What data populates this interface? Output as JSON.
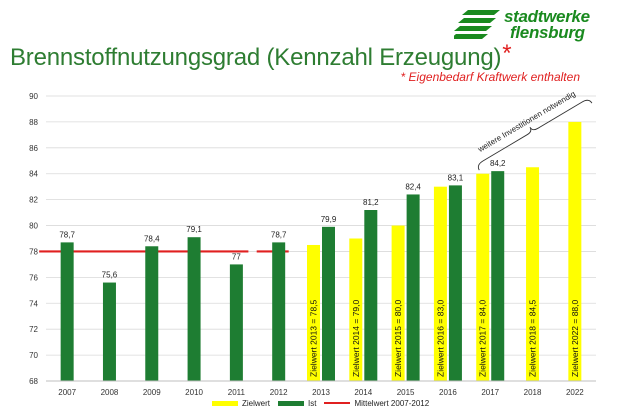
{
  "logo": {
    "line1": "stadtwerke",
    "line2": "flensburg",
    "color": "#1a8a1f"
  },
  "title": {
    "text": "Brennstoffnutzungsgrad (Kennzahl Erzeugung)",
    "star": "*"
  },
  "subtitle": "* Eigenbedarf Kraftwerk enthalten",
  "chart_data": {
    "type": "bar",
    "categories": [
      "2007",
      "2008",
      "2009",
      "2010",
      "2011",
      "2012",
      "2013",
      "2014",
      "2015",
      "2016",
      "2017",
      "2018",
      "2022"
    ],
    "series": [
      {
        "name": "Zielwert",
        "color": "#ffff00",
        "values": [
          null,
          null,
          null,
          null,
          null,
          null,
          78.5,
          79.0,
          80.0,
          83.0,
          84.0,
          84.5,
          88.0
        ],
        "labels": [
          "",
          "",
          "",
          "",
          "",
          "",
          "Zielwert 2013 = 78,5",
          "Zielwert 2014 = 79,0",
          "Zielwert 2015 = 80,0",
          "Zielwert 2016 = 83,0",
          "Zielwert 2017 = 84,0",
          "Zielwert 2018 = 84,5",
          "Zielwert 2022 = 88,0"
        ]
      },
      {
        "name": "Ist",
        "color": "#1e7d32",
        "values": [
          78.7,
          75.6,
          78.4,
          79.1,
          77.0,
          78.7,
          79.9,
          81.2,
          82.4,
          83.1,
          84.2,
          null,
          null
        ],
        "labels": [
          "78,7",
          "75,6",
          "78,4",
          "79,1",
          "77",
          "78,7",
          "79,9",
          "81,2",
          "82,4",
          "83,1",
          "84,2",
          "",
          ""
        ]
      }
    ],
    "reference_line": {
      "name": "Mittelwert 2007-2012",
      "value": 78.0,
      "color": "#e02020"
    },
    "annotation": {
      "text": "weitere Investitionen notwendig"
    },
    "ylim": [
      68,
      90
    ],
    "yticks": [
      68,
      70,
      72,
      74,
      76,
      78,
      80,
      82,
      84,
      86,
      88,
      90
    ],
    "grid": true,
    "legend": {
      "position": "bottom"
    }
  }
}
